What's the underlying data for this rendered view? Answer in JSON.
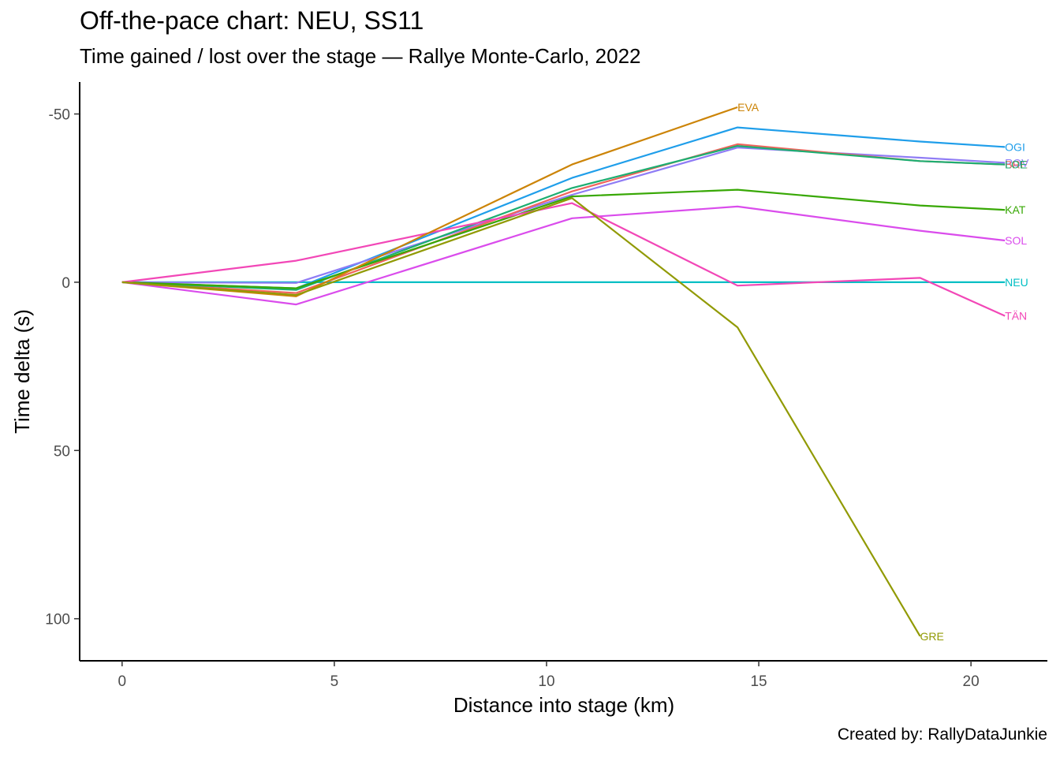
{
  "title": "Off-the-pace chart: NEU, SS11",
  "subtitle": "Time gained / lost over the stage — Rallye Monte-Carlo, 2022",
  "caption": "Created by: RallyDataJunkie",
  "chart_data": {
    "type": "line",
    "xlabel": "Distance into stage (km)",
    "ylabel": "Time delta (s)",
    "xlim": [
      -1,
      21.8
    ],
    "ylim": [
      -59.5,
      112.5
    ],
    "y_reversed": true,
    "x_ticks": [
      0,
      5,
      10,
      15,
      20
    ],
    "x_tick_labels": [
      "0",
      "5",
      "10",
      "15",
      "20"
    ],
    "y_ticks": [
      -50,
      0,
      50,
      100
    ],
    "y_tick_labels": [
      "-50",
      "0",
      "50",
      "100"
    ],
    "grid": false,
    "legend": "none (direct line labels)",
    "series": [
      {
        "name": "NEU",
        "color": "#00BFC4",
        "x": [
          0,
          4.1,
          10.6,
          14.5,
          18.8,
          20.8
        ],
        "y": [
          0,
          0,
          0,
          0,
          0,
          0
        ],
        "label_at": 5
      },
      {
        "name": "OGI",
        "color": "#1F9EEA",
        "x": [
          0,
          4.1,
          10.6,
          14.5,
          18.8,
          20.8
        ],
        "y": [
          0,
          1.8,
          -31,
          -46,
          -41.8,
          -40.2
        ],
        "label_at": 5
      },
      {
        "name": "ROV",
        "color": "#8F7CF5",
        "x": [
          0,
          4.1,
          10.6,
          14.5,
          18.8,
          20.8
        ],
        "y": [
          0,
          0.2,
          -26,
          -40,
          -37,
          -35.5
        ],
        "label_at": 5
      },
      {
        "name": "BRE",
        "color": "#F0645C",
        "x": [
          0,
          4.1,
          10.6,
          14.5,
          18.8,
          20.8
        ],
        "y": [
          0,
          3.2,
          -27,
          -41,
          -36,
          -35
        ],
        "label_at": 5
      },
      {
        "name": "LOE",
        "color": "#1DAE71",
        "x": [
          0,
          4.1,
          10.6,
          14.5,
          18.8,
          20.8
        ],
        "y": [
          0,
          2.3,
          -28,
          -40.5,
          -36,
          -35
        ],
        "label_at": 5
      },
      {
        "name": "KAT",
        "color": "#38A805",
        "x": [
          0,
          4.1,
          10.6,
          14.5,
          18.8,
          20.8
        ],
        "y": [
          0,
          1.8,
          -25.5,
          -27.5,
          -22.8,
          -21.5
        ],
        "label_at": 5
      },
      {
        "name": "SOL",
        "color": "#DA4CEC",
        "x": [
          0,
          4.1,
          10.6,
          14.5,
          18.8,
          20.8
        ],
        "y": [
          0,
          6.6,
          -19,
          -22.5,
          -15.3,
          -12.4
        ],
        "label_at": 5
      },
      {
        "name": "TÄN",
        "color": "#F247B7",
        "x": [
          0,
          4.1,
          10.6,
          14.5,
          18.8,
          20.8
        ],
        "y": [
          0,
          -6.4,
          -23.5,
          1,
          -1.3,
          10
        ],
        "label_at": 5
      },
      {
        "name": "EVA",
        "color": "#CC8407",
        "x": [
          0,
          4.1,
          10.6,
          14.5
        ],
        "y": [
          0,
          4.2,
          -35,
          -52
        ],
        "label_at": 3
      },
      {
        "name": "GRE",
        "color": "#919A04",
        "x": [
          0,
          4.1,
          10.6,
          14.5,
          18.8
        ],
        "y": [
          0,
          3.8,
          -25,
          13.4,
          105.2
        ],
        "label_at": 4
      }
    ]
  }
}
